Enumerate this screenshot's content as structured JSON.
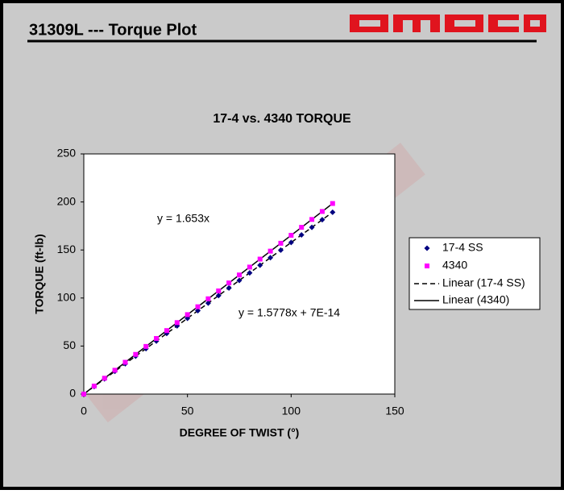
{
  "header": {
    "title": "31309L --- Torque Plot"
  },
  "chart_data": {
    "type": "scatter",
    "title": "17-4 vs. 4340 TORQUE",
    "x_label": "DEGREE OF TWIST (°)",
    "y_label": "TORQUE (ft-lb)",
    "x": [
      0,
      5,
      10,
      15,
      20,
      25,
      30,
      35,
      40,
      45,
      50,
      55,
      60,
      65,
      70,
      75,
      80,
      85,
      90,
      95,
      100,
      105,
      110,
      115,
      120
    ],
    "series": [
      {
        "name": "17-4 SS",
        "color": "#000080",
        "marker": "diamond",
        "values": [
          0,
          7.9,
          15.8,
          23.7,
          31.6,
          39.4,
          47.3,
          55.2,
          63.1,
          71.0,
          78.9,
          86.8,
          94.7,
          102.6,
          110.4,
          118.3,
          126.2,
          134.1,
          142.0,
          149.9,
          157.8,
          165.7,
          173.6,
          181.5,
          189.3
        ]
      },
      {
        "name": "4340",
        "color": "#ff00ff",
        "marker": "square",
        "values": [
          0,
          8.3,
          16.5,
          24.8,
          33.1,
          41.3,
          49.6,
          57.9,
          66.1,
          74.4,
          82.7,
          90.9,
          99.2,
          107.4,
          115.7,
          124.0,
          132.2,
          140.5,
          148.8,
          157.0,
          165.3,
          173.6,
          181.8,
          190.1,
          198.4
        ]
      }
    ],
    "trendlines": [
      {
        "name": "Linear (17-4 SS)",
        "series": 0,
        "slope": 1.5778,
        "intercept": 7e-14,
        "dash": true,
        "label": "y = 1.5778x + 7E-14"
      },
      {
        "name": "Linear (4340)",
        "series": 1,
        "slope": 1.653,
        "intercept": 0,
        "dash": false,
        "label": "y = 1.653x"
      }
    ],
    "xlim": [
      0,
      150
    ],
    "xticks": [
      0,
      50,
      100,
      150
    ],
    "ylim": [
      0,
      250
    ],
    "yticks": [
      0,
      50,
      100,
      150,
      200,
      250
    ],
    "grid": false,
    "legend": "right"
  }
}
